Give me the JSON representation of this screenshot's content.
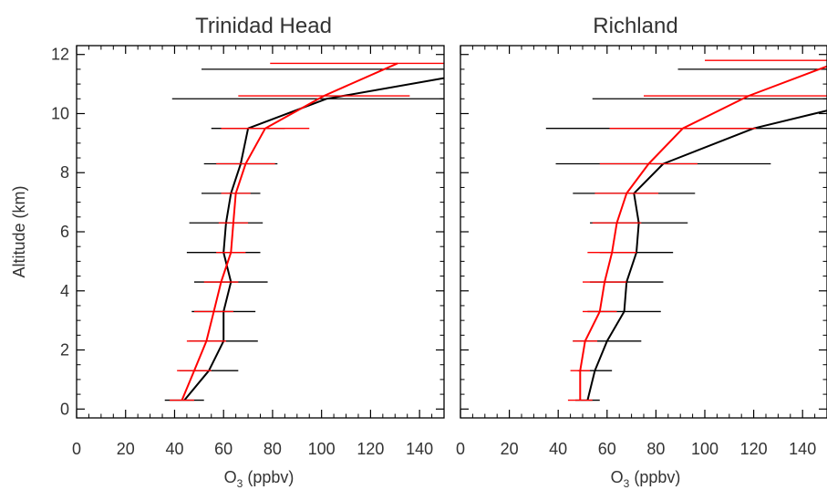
{
  "chart_data": [
    {
      "type": "line",
      "title": "Trinidad Head",
      "xlabel_main": "O",
      "xlabel_sub": "3",
      "xlabel_rest": " (ppbv)",
      "ylabel": "Altitude (km)",
      "xlim": [
        0,
        150
      ],
      "ylim": [
        -0.3,
        12.3
      ],
      "xticks": [
        0,
        20,
        40,
        60,
        80,
        100,
        120,
        140
      ],
      "yticks": [
        0,
        2,
        4,
        6,
        8,
        10,
        12
      ],
      "series": [
        {
          "color": "#000000",
          "points": [
            {
              "alt": 0.3,
              "o3": 44,
              "err": 8
            },
            {
              "alt": 1.3,
              "o3": 54,
              "err": 12
            },
            {
              "alt": 2.3,
              "o3": 60,
              "err": 14
            },
            {
              "alt": 3.3,
              "o3": 60,
              "err": 13
            },
            {
              "alt": 4.3,
              "o3": 63,
              "err": 15
            },
            {
              "alt": 5.3,
              "o3": 60,
              "err": 15
            },
            {
              "alt": 6.3,
              "o3": 61,
              "err": 15
            },
            {
              "alt": 7.3,
              "o3": 63,
              "err": 12
            },
            {
              "alt": 8.3,
              "o3": 67,
              "err": 15
            },
            {
              "alt": 9.5,
              "o3": 70,
              "err": 15
            },
            {
              "alt": 10.5,
              "o3": 102,
              "err": 63
            },
            {
              "alt": 11.2,
              "o3": 150,
              "err": 0
            },
            {
              "alt": 11.5,
              "o3": 158,
              "err": 107
            }
          ]
        },
        {
          "color": "#ff0000",
          "points": [
            {
              "alt": 0.3,
              "o3": 43,
              "err": 5
            },
            {
              "alt": 1.3,
              "o3": 48,
              "err": 7
            },
            {
              "alt": 2.3,
              "o3": 53,
              "err": 8
            },
            {
              "alt": 3.3,
              "o3": 56,
              "err": 8
            },
            {
              "alt": 4.3,
              "o3": 59,
              "err": 7
            },
            {
              "alt": 5.3,
              "o3": 63,
              "err": 6
            },
            {
              "alt": 6.3,
              "o3": 64,
              "err": 6
            },
            {
              "alt": 7.3,
              "o3": 65,
              "err": 6
            },
            {
              "alt": 8.3,
              "o3": 69,
              "err": 12
            },
            {
              "alt": 9.5,
              "o3": 77,
              "err": 18
            },
            {
              "alt": 10.6,
              "o3": 101,
              "err": 35
            },
            {
              "alt": 11.7,
              "o3": 131,
              "err": 52
            }
          ]
        }
      ]
    },
    {
      "type": "line",
      "title": "Richland",
      "xlabel_main": "O",
      "xlabel_sub": "3",
      "xlabel_rest": " (ppbv)",
      "xlim": [
        0,
        150
      ],
      "ylim": [
        -0.3,
        12.3
      ],
      "xticks": [
        0,
        20,
        40,
        60,
        80,
        100,
        120,
        140
      ],
      "yticks": [
        0,
        2,
        4,
        6,
        8,
        10,
        12
      ],
      "series": [
        {
          "color": "#000000",
          "points": [
            {
              "alt": 0.3,
              "o3": 52,
              "err": 5
            },
            {
              "alt": 1.3,
              "o3": 55,
              "err": 7
            },
            {
              "alt": 2.3,
              "o3": 60,
              "err": 14
            },
            {
              "alt": 3.3,
              "o3": 67,
              "err": 15
            },
            {
              "alt": 4.3,
              "o3": 68,
              "err": 15
            },
            {
              "alt": 5.3,
              "o3": 72,
              "err": 15
            },
            {
              "alt": 6.3,
              "o3": 73,
              "err": 20
            },
            {
              "alt": 7.3,
              "o3": 71,
              "err": 25
            },
            {
              "alt": 8.3,
              "o3": 83,
              "err": 44
            },
            {
              "alt": 9.5,
              "o3": 120,
              "err": 85
            },
            {
              "alt": 10.1,
              "o3": 150,
              "err": 0
            },
            {
              "alt": 10.5,
              "o3": 172,
              "err": 118
            },
            {
              "alt": 11.5,
              "o3": 185,
              "err": 96
            }
          ]
        },
        {
          "color": "#ff0000",
          "points": [
            {
              "alt": 0.3,
              "o3": 49,
              "err": 5
            },
            {
              "alt": 1.3,
              "o3": 49,
              "err": 4
            },
            {
              "alt": 2.3,
              "o3": 51,
              "err": 5
            },
            {
              "alt": 3.3,
              "o3": 57,
              "err": 7
            },
            {
              "alt": 4.3,
              "o3": 59,
              "err": 9
            },
            {
              "alt": 5.3,
              "o3": 62,
              "err": 10
            },
            {
              "alt": 6.3,
              "o3": 64,
              "err": 10
            },
            {
              "alt": 7.3,
              "o3": 68,
              "err": 13
            },
            {
              "alt": 8.3,
              "o3": 77,
              "err": 20
            },
            {
              "alt": 9.5,
              "o3": 91,
              "err": 30
            },
            {
              "alt": 10.6,
              "o3": 118,
              "err": 43
            },
            {
              "alt": 11.6,
              "o3": 150,
              "err": 0
            },
            {
              "alt": 11.8,
              "o3": 160,
              "err": 60
            }
          ]
        }
      ]
    }
  ]
}
